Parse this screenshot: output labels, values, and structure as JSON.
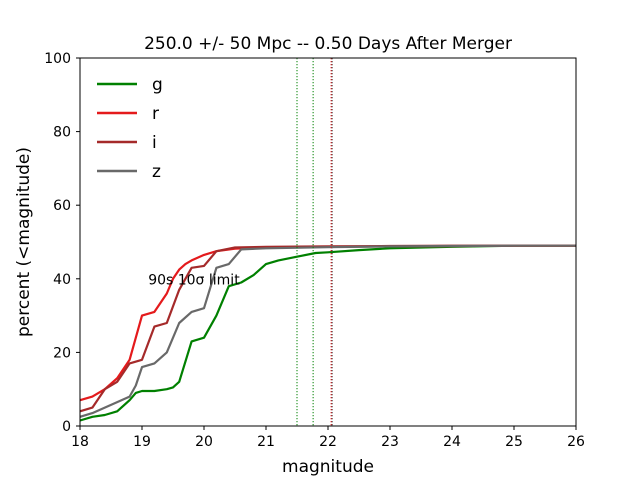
{
  "chart_data": {
    "type": "line",
    "title": "250.0 +/- 50 Mpc  -- 0.50 Days After Merger",
    "xlabel": "magnitude",
    "ylabel": "percent (<magnitude)",
    "xlim": [
      18,
      26
    ],
    "ylim": [
      0,
      100
    ],
    "xticks": [
      "18",
      "19",
      "20",
      "21",
      "22",
      "23",
      "24",
      "25",
      "26"
    ],
    "yticks": [
      "0",
      "20",
      "40",
      "60",
      "80",
      "100"
    ],
    "grid": false,
    "legend_position": "top-left",
    "annotation": {
      "text": "90s 10σ limit",
      "x": 19.1,
      "y": 38.5
    },
    "vlines": [
      {
        "x": 21.5,
        "color": "#008000"
      },
      {
        "x": 21.76,
        "color": "#008000"
      },
      {
        "x": 22.06,
        "color": "#e41a1c"
      },
      {
        "x": 22.06,
        "color": "#a52a2a"
      },
      {
        "x": 22.06,
        "color": "#696969"
      }
    ],
    "series": [
      {
        "name": "g",
        "color": "#008000",
        "x": [
          18.0,
          18.2,
          18.4,
          18.6,
          18.8,
          18.9,
          19.0,
          19.2,
          19.4,
          19.5,
          19.6,
          19.8,
          20.0,
          20.2,
          20.4,
          20.6,
          20.8,
          21.0,
          21.2,
          21.5,
          21.8,
          22.0,
          22.5,
          23.0,
          24.0,
          25.0,
          26.0
        ],
        "y": [
          1.5,
          2.5,
          3.0,
          4.0,
          7.0,
          9.0,
          9.5,
          9.5,
          10.0,
          10.5,
          12.0,
          23.0,
          24.0,
          30.0,
          38.0,
          39.0,
          41.0,
          44.0,
          45.0,
          46.0,
          47.0,
          47.2,
          47.8,
          48.3,
          48.7,
          49.0,
          49.0
        ]
      },
      {
        "name": "r",
        "color": "#e41a1c",
        "x": [
          18.0,
          18.2,
          18.4,
          18.6,
          18.8,
          19.0,
          19.2,
          19.4,
          19.5,
          19.6,
          19.7,
          19.8,
          20.0,
          20.2,
          20.5,
          21.0,
          22.0,
          23.0,
          24.0,
          25.0,
          26.0
        ],
        "y": [
          7.0,
          8.0,
          10.0,
          13.0,
          18.0,
          30.0,
          31.0,
          36.0,
          40.0,
          42.5,
          44.0,
          45.0,
          46.5,
          47.5,
          48.2,
          48.5,
          48.7,
          48.8,
          48.9,
          49.0,
          49.0
        ]
      },
      {
        "name": "i",
        "color": "#a52a2a",
        "x": [
          18.0,
          18.2,
          18.4,
          18.6,
          18.8,
          19.0,
          19.2,
          19.4,
          19.6,
          19.8,
          20.0,
          20.2,
          20.5,
          21.0,
          22.0,
          23.0,
          24.0,
          25.0,
          26.0
        ],
        "y": [
          4.0,
          5.0,
          10.0,
          12.0,
          17.0,
          18.0,
          27.0,
          28.0,
          37.0,
          43.0,
          43.5,
          47.5,
          48.5,
          48.7,
          48.8,
          48.9,
          49.0,
          49.0,
          49.0
        ]
      },
      {
        "name": "z",
        "color": "#696969",
        "x": [
          18.0,
          18.2,
          18.4,
          18.6,
          18.8,
          18.9,
          19.0,
          19.2,
          19.4,
          19.6,
          19.8,
          20.0,
          20.2,
          20.4,
          20.6,
          21.0,
          22.0,
          23.0,
          24.0,
          25.0,
          26.0
        ],
        "y": [
          2.5,
          3.5,
          5.0,
          6.5,
          8.0,
          11.0,
          16.0,
          17.0,
          20.0,
          28.0,
          31.0,
          32.0,
          43.0,
          44.0,
          48.0,
          48.3,
          48.6,
          48.8,
          48.9,
          49.0,
          49.0
        ]
      }
    ]
  }
}
